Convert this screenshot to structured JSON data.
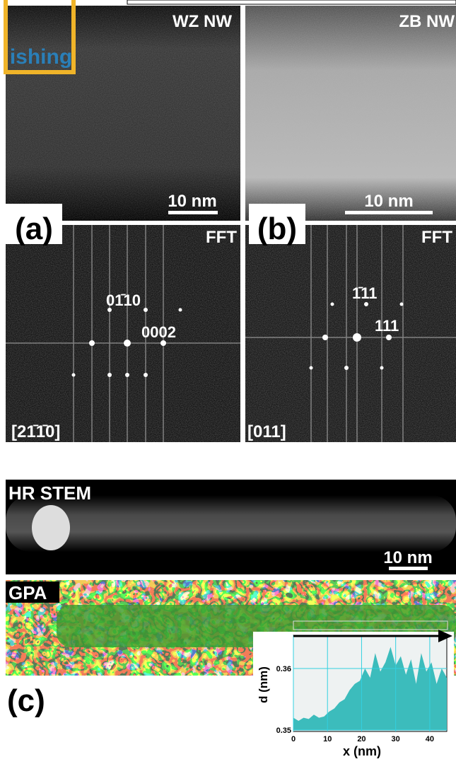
{
  "watermark": "ishing",
  "panels": {
    "a": {
      "label": "(a)",
      "image_title": "WZ NW",
      "scale_bar": "10 nm",
      "fft_title": "FFT",
      "spots": [
        "01̄10",
        "0002"
      ],
      "zone_axis": "[21̄1̄0]"
    },
    "b": {
      "label": "(b)",
      "image_title": "ZB NW",
      "scale_bar": "10 nm",
      "fft_title": "FFT",
      "spots": [
        "1̄11",
        "111"
      ],
      "zone_axis": "[011]"
    },
    "c": {
      "label": "(c)",
      "stem_title": "HR STEM",
      "scale_bar": "10 nm",
      "gpa_title": "GPA"
    }
  },
  "chart_data": {
    "type": "area",
    "x_label": "x (nm)",
    "y_label": "d (nm)",
    "x": [
      0,
      1.5,
      3,
      4.5,
      6,
      7.5,
      9,
      10.5,
      12,
      13.5,
      15,
      16.5,
      18,
      19.5,
      21,
      22.5,
      24,
      25.5,
      27,
      28.5,
      30,
      31.5,
      33,
      34.5,
      36,
      37.5,
      39,
      40.5,
      42,
      43.5,
      45
    ],
    "values": [
      0.352,
      0.3515,
      0.352,
      0.3518,
      0.3525,
      0.352,
      0.3522,
      0.353,
      0.3535,
      0.3545,
      0.355,
      0.3565,
      0.3575,
      0.358,
      0.36,
      0.3585,
      0.3625,
      0.3595,
      0.361,
      0.3635,
      0.3605,
      0.362,
      0.359,
      0.3615,
      0.3575,
      0.3625,
      0.3595,
      0.361,
      0.3575,
      0.36,
      0.3585
    ],
    "color": "#3cbcbc",
    "xlim": [
      0,
      45
    ],
    "ylim": [
      0.35,
      0.365
    ],
    "xticks": [
      0,
      10,
      20,
      30,
      40
    ],
    "yticks": [
      0.35,
      0.36
    ],
    "grid": true
  }
}
